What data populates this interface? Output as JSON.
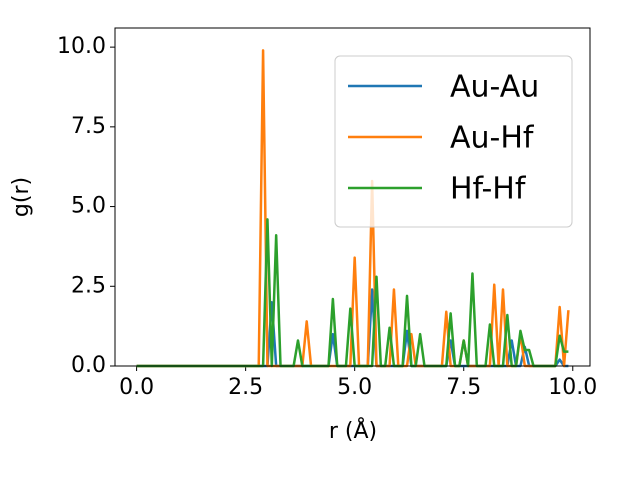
{
  "chart_data": {
    "type": "line",
    "xlabel": "r (Å)",
    "ylabel": "g(r)",
    "x": [
      0.0,
      0.1,
      0.2,
      0.3,
      0.4,
      0.5,
      0.6,
      0.7,
      0.8,
      0.9,
      1.0,
      1.1,
      1.2,
      1.3,
      1.4,
      1.5,
      1.6,
      1.7,
      1.8,
      1.9,
      2.0,
      2.1,
      2.2,
      2.3,
      2.4,
      2.5,
      2.6,
      2.7,
      2.8,
      2.9,
      3.0,
      3.1,
      3.2,
      3.3,
      3.4,
      3.5,
      3.6,
      3.7,
      3.8,
      3.9,
      4.0,
      4.1,
      4.2,
      4.3,
      4.4,
      4.5,
      4.6,
      4.7,
      4.8,
      4.9,
      5.0,
      5.1,
      5.2,
      5.3,
      5.4,
      5.5,
      5.6,
      5.7,
      5.8,
      5.9,
      6.0,
      6.1,
      6.2,
      6.3,
      6.4,
      6.5,
      6.6,
      6.7,
      6.8,
      6.9,
      7.0,
      7.1,
      7.2,
      7.3,
      7.4,
      7.5,
      7.6,
      7.7,
      7.8,
      7.9,
      8.0,
      8.1,
      8.2,
      8.3,
      8.4,
      8.5,
      8.6,
      8.7,
      8.8,
      8.9,
      9.0,
      9.1,
      9.2,
      9.3,
      9.4,
      9.5,
      9.6,
      9.7,
      9.8,
      9.9
    ],
    "series": [
      {
        "name": "Au-Au",
        "color": "#1f77b4",
        "values": [
          0,
          0,
          0,
          0,
          0,
          0,
          0,
          0,
          0,
          0,
          0,
          0,
          0,
          0,
          0,
          0,
          0,
          0,
          0,
          0,
          0,
          0,
          0,
          0,
          0,
          0,
          0,
          0,
          0,
          0,
          0,
          2.0,
          0,
          0,
          0,
          0,
          0,
          0,
          0,
          0,
          0,
          0,
          0,
          0,
          0,
          1.0,
          0,
          0,
          0,
          0,
          0,
          0,
          0,
          0,
          2.4,
          0,
          0,
          0,
          0,
          0,
          0,
          0,
          1.1,
          0,
          0,
          0,
          0,
          0,
          0,
          0,
          0,
          0,
          0.8,
          0,
          0,
          0,
          0,
          0,
          0,
          0,
          0,
          0,
          0,
          0,
          0,
          0,
          0.8,
          0,
          0,
          0.6,
          0,
          0,
          0,
          0,
          0,
          0,
          0,
          0.2,
          0,
          0
        ]
      },
      {
        "name": "Au-Hf",
        "color": "#ff7f0e",
        "values": [
          0,
          0,
          0,
          0,
          0,
          0,
          0,
          0,
          0,
          0,
          0,
          0,
          0,
          0,
          0,
          0,
          0,
          0,
          0,
          0,
          0,
          0,
          0,
          0,
          0,
          0,
          0,
          0,
          0,
          9.9,
          0,
          0,
          0,
          0,
          0,
          0,
          0,
          0,
          0,
          1.4,
          0,
          0,
          0,
          0,
          0,
          0,
          0,
          0,
          0,
          0,
          3.4,
          0,
          0,
          0,
          5.8,
          0,
          0,
          0,
          0,
          2.4,
          0,
          0,
          0,
          1.0,
          0,
          0,
          0,
          0,
          0,
          0,
          0,
          1.7,
          0,
          0,
          0,
          0.8,
          0,
          0,
          0,
          0,
          0,
          0,
          2.55,
          0,
          2.4,
          0,
          0,
          0,
          1.0,
          0,
          0,
          0,
          0,
          0,
          0,
          0,
          0,
          1.85,
          0,
          1.75
        ]
      },
      {
        "name": "Hf-Hf",
        "color": "#2ca02c",
        "values": [
          0,
          0,
          0,
          0,
          0,
          0,
          0,
          0,
          0,
          0,
          0,
          0,
          0,
          0,
          0,
          0,
          0,
          0,
          0,
          0,
          0,
          0,
          0,
          0,
          0,
          0,
          0,
          0,
          0,
          0,
          4.6,
          0,
          4.1,
          0,
          0,
          0,
          0,
          0.8,
          0,
          0,
          0,
          0,
          0,
          0,
          0,
          2.1,
          0,
          0,
          0,
          1.8,
          0,
          0,
          0,
          0,
          0,
          2.8,
          0,
          0,
          1.2,
          0,
          0,
          0,
          2.2,
          0,
          0,
          1.0,
          0,
          0,
          0,
          0,
          0,
          0,
          1.65,
          0,
          0,
          0.8,
          0,
          2.9,
          0,
          0,
          0,
          1.3,
          0,
          0,
          0,
          1.6,
          0,
          0,
          1.1,
          0.5,
          0.5,
          0,
          0,
          0,
          0,
          0,
          0,
          0.95,
          0.45,
          0.45
        ]
      }
    ],
    "xlim": [
      -0.495,
      10.395
    ],
    "xticks": [
      {
        "value": 0,
        "label": "0.0"
      },
      {
        "value": 2.5,
        "label": "2.5"
      },
      {
        "value": 5,
        "label": "5.0"
      },
      {
        "value": 7.5,
        "label": "7.5"
      },
      {
        "value": 10,
        "label": "10.0"
      }
    ],
    "ylim": [
      0,
      10.6
    ],
    "yticks": [
      {
        "value": 0,
        "label": "0.0"
      },
      {
        "value": 2.5,
        "label": "2.5"
      },
      {
        "value": 5,
        "label": "5.0"
      },
      {
        "value": 7.5,
        "label": "7.5"
      },
      {
        "value": 10,
        "label": "10.0"
      }
    ],
    "legend": "upper right"
  }
}
